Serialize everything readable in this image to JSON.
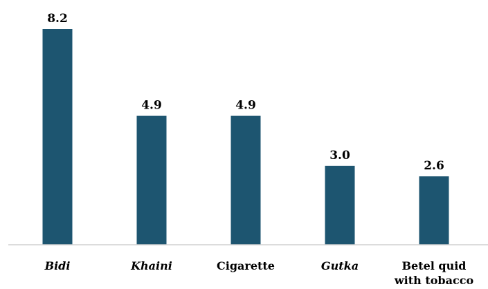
{
  "chart_data": {
    "type": "bar",
    "categories": [
      "Bidi",
      "Khaini",
      "Cigarette",
      "Gutka",
      "Betel quid with tobacco"
    ],
    "category_lines": [
      [
        "Bidi"
      ],
      [
        "Khaini"
      ],
      [
        "Cigarette"
      ],
      [
        "Gutka"
      ],
      [
        "Betel quid",
        "with tobacco"
      ]
    ],
    "italic_categories": [
      true,
      true,
      false,
      true,
      false
    ],
    "values": [
      8.2,
      4.9,
      4.9,
      3.0,
      2.6
    ],
    "value_labels": [
      "8.2",
      "4.9",
      "4.9",
      "3.0",
      "2.6"
    ],
    "ylim": [
      0,
      8.2
    ],
    "grid": false,
    "bar_color": "#1d5570",
    "axis_color": "#d0d0d0"
  }
}
